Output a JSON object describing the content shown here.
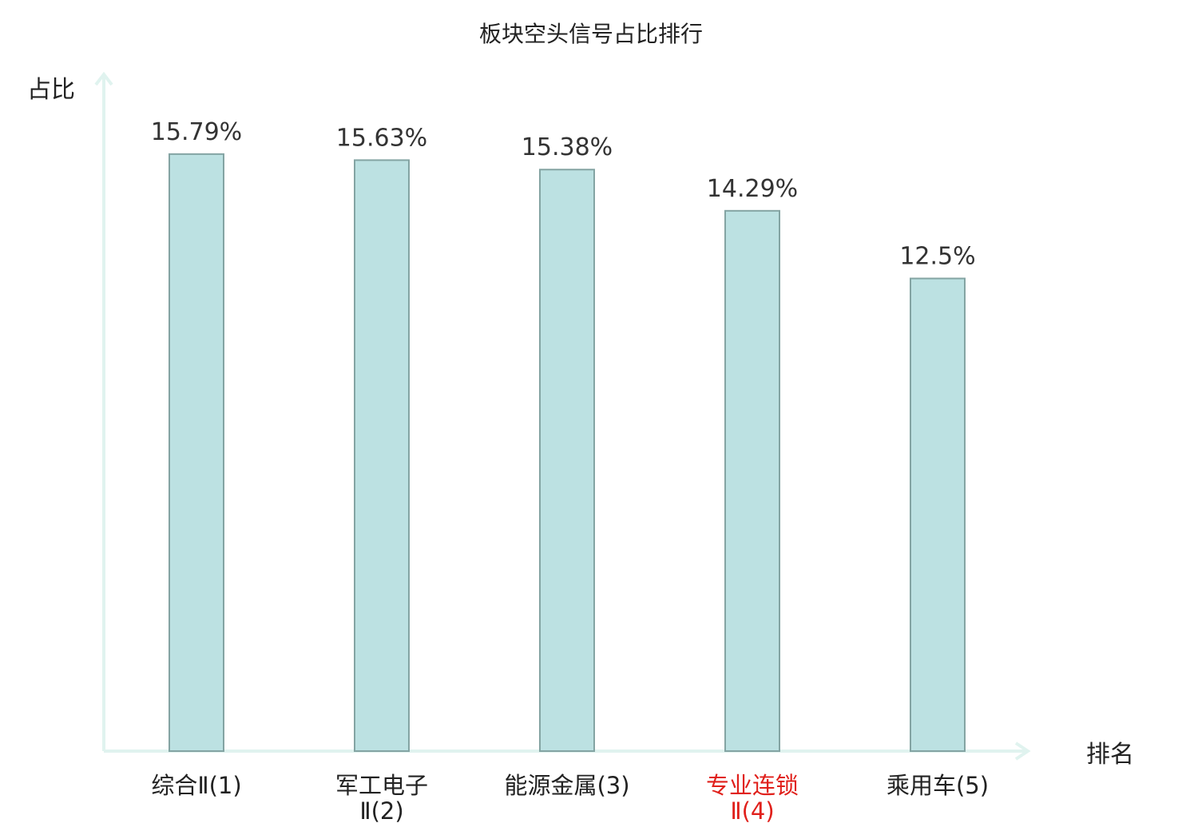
{
  "chart_data": {
    "type": "bar",
    "title": "板块空头信号占比排行",
    "ylabel": "占比",
    "xlabel": "排名",
    "categories": [
      {
        "lines": [
          "综合Ⅱ(1)"
        ],
        "highlight": false
      },
      {
        "lines": [
          "军工电子",
          "Ⅱ(2)"
        ],
        "highlight": false
      },
      {
        "lines": [
          "能源金属(3)"
        ],
        "highlight": false
      },
      {
        "lines": [
          "专业连锁",
          "Ⅱ(4)"
        ],
        "highlight": true
      },
      {
        "lines": [
          "乘用车(5)"
        ],
        "highlight": false
      }
    ],
    "values": [
      15.79,
      15.63,
      15.38,
      14.29,
      12.5
    ],
    "value_labels": [
      "15.79%",
      "15.63%",
      "15.38%",
      "14.29%",
      "12.5%"
    ],
    "ylim": [
      0,
      17.9
    ],
    "grid": false,
    "legend": "none"
  },
  "colors": {
    "bar_fill": "#bce1e2",
    "bar_stroke": "#84a4a3",
    "axis": "#e0f3ef",
    "label_text": "#222222",
    "highlight_text": "#e0201b"
  }
}
